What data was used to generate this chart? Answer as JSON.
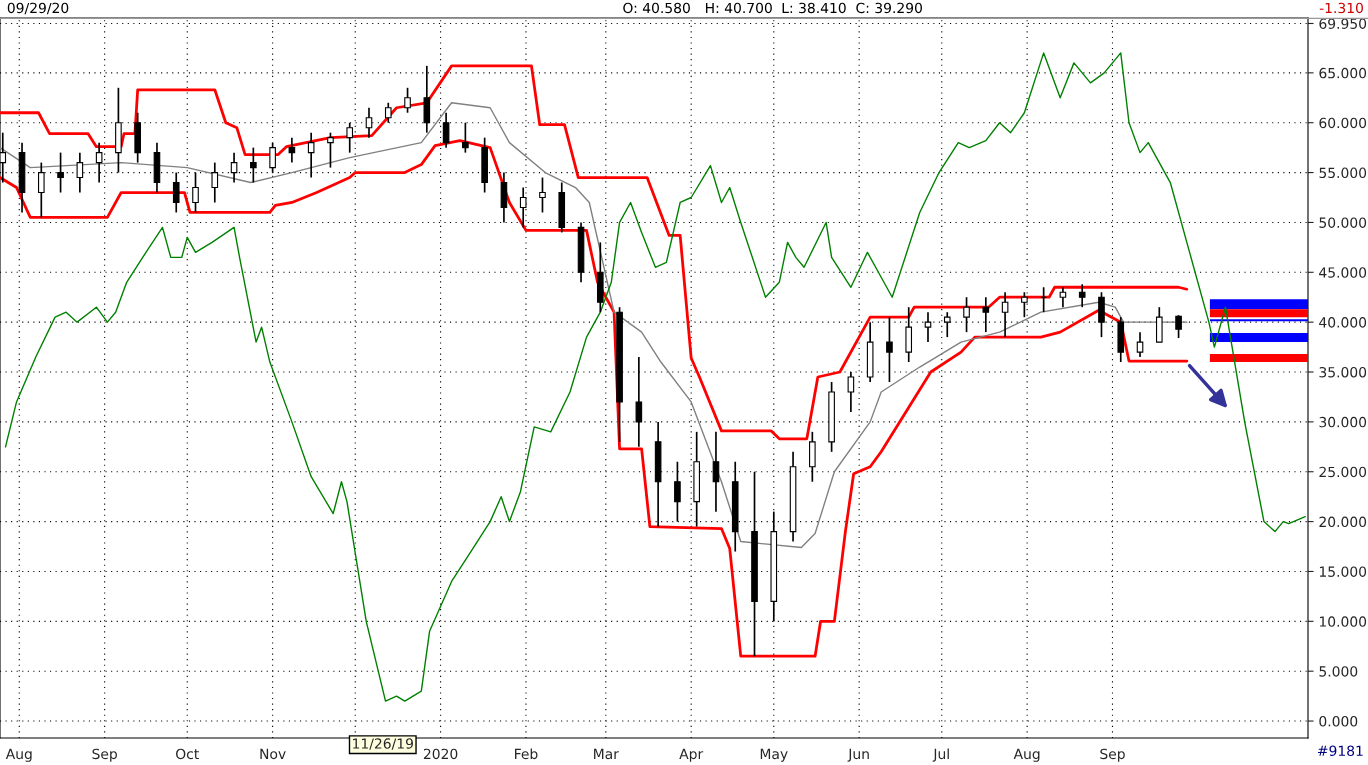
{
  "chart_data": {
    "type": "candlestick",
    "x": [
      "2019-07-26",
      "2019-08-02",
      "2019-08-09",
      "2019-08-16",
      "2019-08-23",
      "2019-08-30",
      "2019-09-06",
      "2019-09-13",
      "2019-09-20",
      "2019-09-27",
      "2019-10-04",
      "2019-10-11",
      "2019-10-18",
      "2019-10-25",
      "2019-11-01",
      "2019-11-08",
      "2019-11-15",
      "2019-11-22",
      "2019-11-29",
      "2019-12-06",
      "2019-12-13",
      "2019-12-20",
      "2019-12-27",
      "2020-01-03",
      "2020-01-10",
      "2020-01-17",
      "2020-01-24",
      "2020-01-31",
      "2020-02-07",
      "2020-02-14",
      "2020-02-21",
      "2020-02-28",
      "2020-03-06",
      "2020-03-13",
      "2020-03-20",
      "2020-03-27",
      "2020-04-03",
      "2020-04-10",
      "2020-04-17",
      "2020-04-24",
      "2020-05-01",
      "2020-05-08",
      "2020-05-15",
      "2020-05-22",
      "2020-05-29",
      "2020-06-05",
      "2020-06-12",
      "2020-06-19",
      "2020-06-26",
      "2020-07-03",
      "2020-07-10",
      "2020-07-17",
      "2020-07-24",
      "2020-07-31",
      "2020-08-07",
      "2020-08-14",
      "2020-08-21",
      "2020-08-28",
      "2020-09-04",
      "2020-09-11",
      "2020-09-18",
      "2020-09-25"
    ],
    "ohlc": [
      [
        56,
        59,
        54,
        57
      ],
      [
        57,
        58,
        51,
        53
      ],
      [
        53,
        56,
        50.5,
        55
      ],
      [
        55,
        57,
        53,
        54.5
      ],
      [
        54.5,
        57,
        53,
        56
      ],
      [
        56,
        58,
        54,
        57
      ],
      [
        57,
        63.5,
        55,
        60
      ],
      [
        60,
        61,
        56,
        57
      ],
      [
        57,
        58,
        53,
        54
      ],
      [
        54,
        55,
        51,
        52
      ],
      [
        52,
        55,
        51,
        53.5
      ],
      [
        53.5,
        56,
        52,
        55
      ],
      [
        55,
        57,
        54,
        56
      ],
      [
        56,
        57.5,
        54,
        55.5
      ],
      [
        55.5,
        58,
        55,
        57.5
      ],
      [
        57.5,
        58.5,
        56,
        57
      ],
      [
        57,
        59,
        54.5,
        58
      ],
      [
        58,
        59,
        55.5,
        58.5
      ],
      [
        58.5,
        60,
        57,
        59.5
      ],
      [
        59.5,
        61.5,
        58.5,
        60.5
      ],
      [
        60.5,
        62,
        60,
        61.5
      ],
      [
        61.5,
        63.5,
        61,
        62.5
      ],
      [
        62.5,
        65.7,
        59,
        60
      ],
      [
        60,
        61,
        57.5,
        58
      ],
      [
        58,
        60,
        57,
        57.5
      ],
      [
        57.5,
        58.5,
        53,
        54
      ],
      [
        54,
        55,
        50,
        51.5
      ],
      [
        51.5,
        53.5,
        49.5,
        52.5
      ],
      [
        52.5,
        54.5,
        51,
        53
      ],
      [
        53,
        54,
        49,
        49.5
      ],
      [
        49.5,
        50,
        44,
        45
      ],
      [
        45,
        48,
        41,
        42
      ],
      [
        41,
        41.5,
        28,
        32
      ],
      [
        32,
        36.5,
        27.5,
        30
      ],
      [
        28,
        30,
        19.5,
        24
      ],
      [
        24,
        26,
        20,
        22
      ],
      [
        22,
        29,
        19.5,
        26
      ],
      [
        26,
        29,
        21,
        24
      ],
      [
        24,
        26,
        17,
        19
      ],
      [
        19,
        25,
        6.5,
        12
      ],
      [
        12,
        21,
        10,
        19
      ],
      [
        19,
        27,
        18,
        25.5
      ],
      [
        25.5,
        29,
        24,
        28
      ],
      [
        28,
        34,
        27,
        33
      ],
      [
        33,
        35,
        31,
        34.5
      ],
      [
        34.5,
        40,
        34,
        38
      ],
      [
        38,
        40.5,
        34,
        37
      ],
      [
        37,
        41.5,
        36,
        39.5
      ],
      [
        39.5,
        41,
        38,
        40
      ],
      [
        40,
        41,
        38.5,
        40.5
      ],
      [
        40.5,
        42.5,
        39,
        41.5
      ],
      [
        41.5,
        42.5,
        39,
        41
      ],
      [
        41,
        43,
        38.5,
        42
      ],
      [
        42,
        43,
        40.5,
        42.5
      ],
      [
        42.5,
        43.5,
        41,
        42.5
      ],
      [
        42.5,
        43.5,
        41.5,
        43
      ],
      [
        43,
        43.8,
        41.5,
        42.5
      ],
      [
        42.5,
        43,
        38.5,
        40
      ],
      [
        40,
        40.5,
        36,
        37
      ],
      [
        37,
        39,
        36.5,
        38
      ],
      [
        38,
        41.5,
        38,
        40.5
      ],
      [
        40.58,
        40.7,
        38.41,
        39.29
      ]
    ],
    "color": "#000000",
    "series": [
      {
        "type": "line",
        "color": "#ff0000",
        "x": [
          "2019-07-25",
          "2019-08-08",
          "2019-08-12",
          "2019-08-26",
          "2019-08-29",
          "2019-09-07",
          "2019-09-08",
          "2019-09-12",
          "2019-09-13",
          "2019-10-11",
          "2019-10-15",
          "2019-10-19",
          "2019-10-22",
          "2019-11-03",
          "2019-11-06",
          "2019-11-22",
          "2019-12-07",
          "2019-12-16",
          "2019-12-27",
          "2020-01-05",
          "2020-02-03",
          "2020-02-06",
          "2020-02-15",
          "2020-02-20",
          "2020-03-16",
          "2020-03-24",
          "2020-03-28",
          "2020-04-01",
          "2020-04-04",
          "2020-04-12",
          "2020-04-30",
          "2020-05-03",
          "2020-05-13",
          "2020-05-17",
          "2020-05-25",
          "2020-06-05",
          "2020-06-19",
          "2020-06-21",
          "2020-07-18",
          "2020-07-22",
          "2020-08-09",
          "2020-08-11",
          "2020-09-25",
          "2020-09-28"
        ],
        "values": [
          61,
          61,
          58.9,
          58.9,
          57.6,
          57.6,
          58.9,
          58.9,
          63.3,
          63.3,
          60,
          59.5,
          56.8,
          56.8,
          57.6,
          58.5,
          58.7,
          61.5,
          62,
          65.7,
          65.7,
          59.8,
          59.8,
          54.5,
          54.5,
          48.7,
          48.7,
          36.4,
          34.5,
          29.1,
          29.1,
          28.3,
          28.3,
          34.5,
          35,
          40.5,
          40.5,
          41.5,
          41.5,
          42.5,
          42.5,
          43.5,
          43.5,
          43.3
        ]
      },
      {
        "type": "line",
        "color": "#ff0000",
        "x": [
          "2019-07-25",
          "2019-07-31",
          "2019-08-05",
          "2019-09-02",
          "2019-09-07",
          "2019-09-30",
          "2019-10-02",
          "2019-10-31",
          "2019-11-02",
          "2019-11-08",
          "2019-11-17",
          "2019-11-29",
          "2019-12-01",
          "2019-12-19",
          "2019-12-25",
          "2019-12-30",
          "2020-01-08",
          "2020-01-19",
          "2020-01-26",
          "2020-02-01",
          "2020-02-23",
          "2020-02-27",
          "2020-03-04",
          "2020-03-06",
          "2020-03-14",
          "2020-03-17",
          "2020-04-12",
          "2020-04-15",
          "2020-04-19",
          "2020-05-16",
          "2020-05-18",
          "2020-05-23",
          "2020-05-27",
          "2020-05-30",
          "2020-06-05",
          "2020-06-09",
          "2020-06-27",
          "2020-07-08",
          "2020-07-13",
          "2020-08-06",
          "2020-08-13",
          "2020-08-27",
          "2020-09-04",
          "2020-09-07",
          "2020-09-28"
        ],
        "values": [
          54.5,
          53.5,
          50.5,
          50.5,
          53,
          53,
          51,
          51,
          51.7,
          52,
          53,
          54.5,
          55,
          55,
          55.8,
          57.7,
          58.2,
          57.5,
          52,
          49.2,
          49.2,
          44,
          41,
          27.3,
          27.3,
          19.5,
          19.3,
          17.3,
          6.5,
          6.5,
          10,
          10,
          19,
          24.8,
          25.5,
          27,
          35,
          37,
          38.5,
          38.5,
          39,
          41.2,
          40,
          36.1,
          36.1
        ]
      },
      {
        "type": "line",
        "color": "#808080",
        "x": [
          "2019-07-25",
          "2019-08-05",
          "2019-09-07",
          "2019-10-01",
          "2019-10-24",
          "2019-11-08",
          "2019-11-29",
          "2019-12-25",
          "2020-01-05",
          "2020-01-19",
          "2020-01-26",
          "2020-02-08",
          "2020-02-19",
          "2020-02-24",
          "2020-03-04",
          "2020-03-14",
          "2020-03-21",
          "2020-04-01",
          "2020-04-12",
          "2020-04-19",
          "2020-05-11",
          "2020-05-16",
          "2020-05-23",
          "2020-06-05",
          "2020-06-09",
          "2020-06-23",
          "2020-07-08",
          "2020-07-22",
          "2020-08-06",
          "2020-08-27",
          "2020-09-02",
          "2020-09-05",
          "2020-09-28"
        ],
        "values": [
          57.5,
          55.5,
          56,
          55.5,
          54,
          55,
          56.5,
          58,
          62,
          61.5,
          58,
          55,
          53.5,
          52,
          41,
          39,
          36,
          32,
          24,
          18,
          17.4,
          18.8,
          25,
          30,
          33,
          35.5,
          38,
          39,
          41,
          42,
          41.5,
          40,
          40
        ]
      },
      {
        "type": "line",
        "color": "#008000",
        "x": [
          "2019-07-27",
          "2019-07-31",
          "2019-08-07",
          "2019-08-14",
          "2019-08-18",
          "2019-08-22",
          "2019-08-29",
          "2019-09-02",
          "2019-09-05",
          "2019-09-09",
          "2019-09-16",
          "2019-09-22",
          "2019-09-25",
          "2019-09-29",
          "2019-10-01",
          "2019-10-04",
          "2019-10-10",
          "2019-10-18",
          "2019-10-20",
          "2019-10-26",
          "2019-10-28",
          "2019-10-31",
          "2019-11-08",
          "2019-11-15",
          "2019-11-23",
          "2019-11-26",
          "2019-11-28",
          "2019-12-05",
          "2019-12-12",
          "2019-12-16",
          "2019-12-19",
          "2019-12-22",
          "2019-12-25",
          "2019-12-28",
          "2020-01-05",
          "2020-01-12",
          "2020-01-19",
          "2020-01-23",
          "2020-01-26",
          "2020-01-30",
          "2020-02-04",
          "2020-02-10",
          "2020-02-17",
          "2020-02-23",
          "2020-02-28",
          "2020-03-03",
          "2020-03-06",
          "2020-03-10",
          "2020-03-14",
          "2020-03-19",
          "2020-03-23",
          "2020-03-28",
          "2020-04-01",
          "2020-04-08",
          "2020-04-12",
          "2020-04-15",
          "2020-04-19",
          "2020-04-28",
          "2020-05-03",
          "2020-05-06",
          "2020-05-09",
          "2020-05-12",
          "2020-05-20",
          "2020-05-22",
          "2020-05-29",
          "2020-06-04",
          "2020-06-10",
          "2020-06-13",
          "2020-06-23",
          "2020-06-30",
          "2020-07-07",
          "2020-07-11",
          "2020-07-17",
          "2020-07-22",
          "2020-07-26",
          "2020-07-31",
          "2020-08-07",
          "2020-08-13",
          "2020-08-18",
          "2020-08-24",
          "2020-08-29",
          "2020-09-04",
          "2020-09-07",
          "2020-09-11",
          "2020-09-14",
          "2020-09-22",
          "2020-09-29",
          "2020-10-06",
          "2020-10-08",
          "2020-10-12",
          "2020-10-19",
          "2020-10-26",
          "2020-10-30",
          "2020-11-02",
          "2020-11-04",
          "2020-11-10"
        ],
        "values": [
          27.5,
          32,
          36.5,
          40.5,
          41,
          40,
          41.5,
          40,
          41,
          44,
          47,
          49.5,
          46.5,
          46.5,
          48.5,
          47,
          48,
          49.5,
          46.5,
          38,
          39.5,
          36,
          30,
          24.5,
          20.8,
          24,
          22,
          10,
          2,
          2.5,
          2,
          2.5,
          3,
          9,
          14,
          17,
          20,
          22.5,
          20,
          23,
          29.5,
          29,
          33,
          38.5,
          41,
          44,
          50,
          52,
          49,
          45.5,
          46,
          52,
          52.5,
          55.7,
          52,
          53.5,
          50,
          42.5,
          44,
          48,
          46.5,
          45.5,
          50,
          46.5,
          43.5,
          47,
          44,
          42.5,
          51,
          55,
          58,
          57.5,
          58.2,
          60,
          59,
          61,
          67,
          62.5,
          66,
          64,
          65,
          67,
          60,
          57,
          58,
          54,
          47,
          40,
          37.5,
          41.5,
          30,
          20,
          19,
          20,
          19.8,
          20.5
        ]
      }
    ],
    "bands": [
      {
        "axis": "y",
        "from": 41.3,
        "to": 42.3,
        "color": "#0000ff"
      },
      {
        "axis": "y",
        "from": 40.5,
        "to": 41.3,
        "color": "#ff0000"
      },
      {
        "axis": "y",
        "from": 40.1,
        "to": 40.3,
        "color": "#0000ff"
      },
      {
        "axis": "y",
        "from": 38,
        "to": 38.9,
        "color": "#0000ff"
      },
      {
        "axis": "y",
        "from": 36,
        "to": 36.8,
        "color": "#ff0000"
      }
    ],
    "xlim": [
      "2019-07-25",
      "2020-11-11"
    ],
    "xticks": [
      {
        "value": "2019-08-01",
        "label": "Aug"
      },
      {
        "value": "2019-09-01",
        "label": "Sep"
      },
      {
        "value": "2019-10-01",
        "label": "Oct"
      },
      {
        "value": "2019-11-01",
        "label": "Nov"
      },
      {
        "value": "2019-12-01",
        "label": null
      },
      {
        "value": "2020-01-01",
        "label": "2020"
      },
      {
        "value": "2020-02-01",
        "label": "Feb"
      },
      {
        "value": "2020-03-01",
        "label": "Mar"
      },
      {
        "value": "2020-04-01",
        "label": "Apr"
      },
      {
        "value": "2020-05-01",
        "label": "May"
      },
      {
        "value": "2020-06-01",
        "label": "Jun"
      },
      {
        "value": "2020-07-01",
        "label": "Jul"
      },
      {
        "value": "2020-08-01",
        "label": "Aug"
      },
      {
        "value": "2020-09-01",
        "label": "Sep"
      }
    ],
    "ylim": [
      -1.7,
      70.5
    ],
    "yticks": [
      {
        "value": 0,
        "label": "0.000"
      },
      {
        "value": 5,
        "label": "5.000"
      },
      {
        "value": 10,
        "label": "10.000"
      },
      {
        "value": 15,
        "label": "15.000"
      },
      {
        "value": 20,
        "label": "20.000"
      },
      {
        "value": 25,
        "label": "25.000"
      },
      {
        "value": 30,
        "label": "30.000"
      },
      {
        "value": 35,
        "label": "35.000"
      },
      {
        "value": 40,
        "label": "40.000"
      },
      {
        "value": 45,
        "label": "45.000"
      },
      {
        "value": 50,
        "label": "50.000"
      },
      {
        "value": 55,
        "label": "55.000"
      },
      {
        "value": 60,
        "label": "60.000"
      },
      {
        "value": 65,
        "label": "65.000"
      },
      {
        "value": 69.95,
        "label": "69.950"
      }
    ],
    "grid": true,
    "annotations": [
      "09/29/20",
      "O: 40.580",
      "H: 40.700",
      "L: 38.410",
      "C: 39.290",
      "-1.310",
      "11/26/19",
      "#9181"
    ]
  }
}
